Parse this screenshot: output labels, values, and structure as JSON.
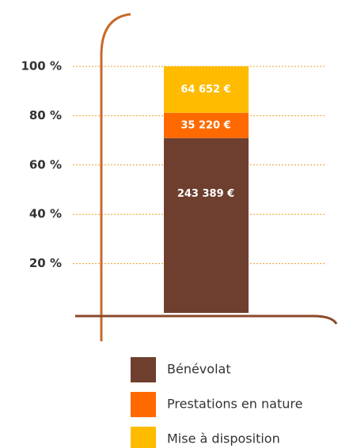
{
  "chart_data": {
    "type": "bar",
    "stacked": "percent",
    "categories": [
      null
    ],
    "series": [
      {
        "name": "Bénévolat",
        "color": "#6e3f2e",
        "values": [
          243389
        ],
        "value_labels": [
          "243 389 €"
        ]
      },
      {
        "name": "Prestations en nature",
        "color": "#ff6a00",
        "values": [
          35220
        ],
        "value_labels": [
          "35 220 €"
        ]
      },
      {
        "name": "Mise à disposition",
        "color": "#ffbb00",
        "values": [
          64652
        ],
        "value_labels": [
          "64 652 €"
        ]
      }
    ],
    "ylim": [
      0,
      100
    ],
    "yticks": [
      {
        "value": 20,
        "label": "20 %"
      },
      {
        "value": 40,
        "label": "40 %"
      },
      {
        "value": 60,
        "label": "60 %"
      },
      {
        "value": 80,
        "label": "80 %"
      },
      {
        "value": 100,
        "label": "100 %"
      }
    ],
    "grid": true,
    "legend": "bottom"
  }
}
